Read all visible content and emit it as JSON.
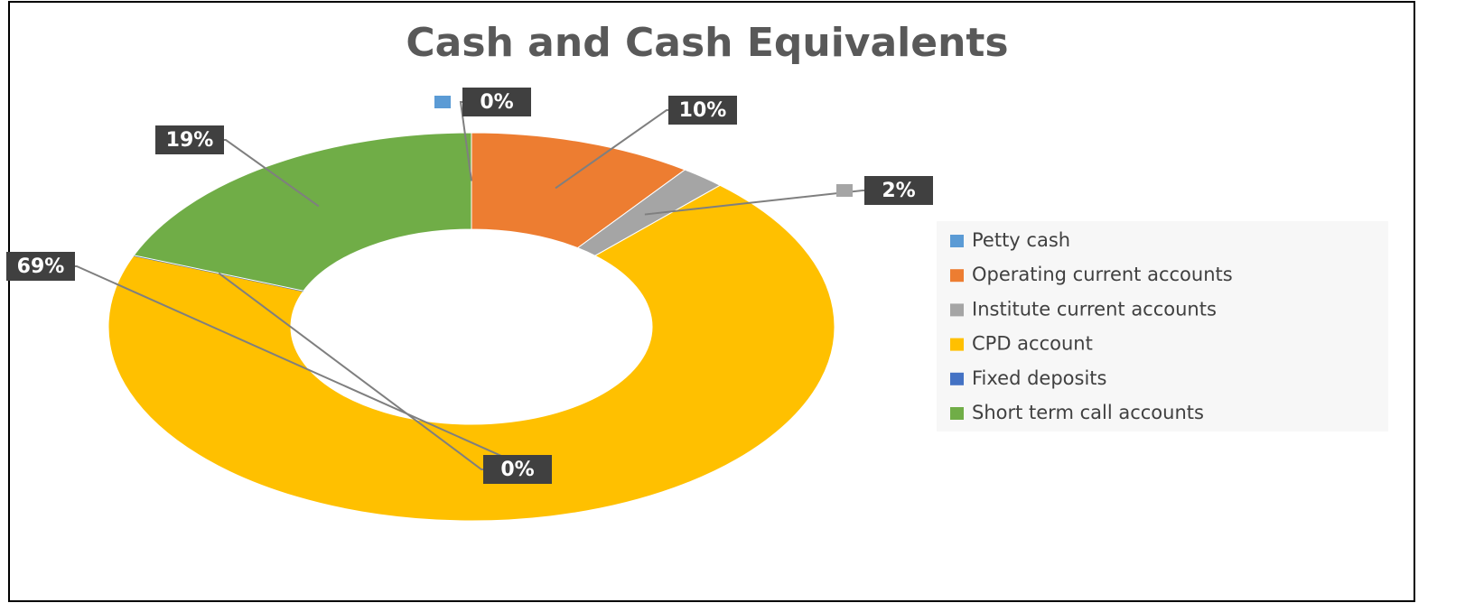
{
  "chart_data": {
    "type": "donut",
    "title": "Cash and Cash Equivalents",
    "categories": [
      "Petty cash",
      "Operating current accounts",
      "Institute current accounts",
      "CPD account",
      "Fixed deposits",
      "Short term call accounts"
    ],
    "values": [
      0,
      10,
      2,
      69,
      0,
      19
    ],
    "value_labels": [
      "0%",
      "10%",
      "2%",
      "69%",
      "0%",
      "19%"
    ],
    "colors": [
      "#5b9bd5",
      "#ed7d31",
      "#a5a5a5",
      "#ffc000",
      "#4472c4",
      "#70ad47"
    ],
    "legend": "right"
  }
}
